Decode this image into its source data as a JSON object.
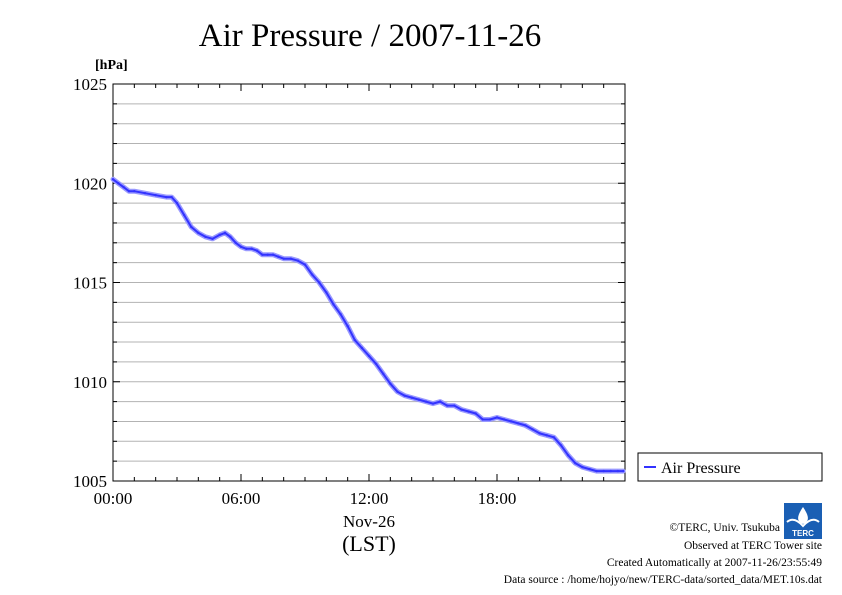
{
  "chart_data": {
    "type": "line",
    "title": "Air Pressure / 2007-11-26",
    "ylabel": "[hPa]",
    "xlabel": "(LST)",
    "x_date_label": "Nov-26",
    "ylim": [
      1005,
      1025
    ],
    "xlim": [
      "00:00",
      "24:00"
    ],
    "y_ticks": [
      "1005",
      "1010",
      "1015",
      "1020",
      "1025"
    ],
    "x_ticks": [
      "00:00",
      "06:00",
      "12:00",
      "18:00"
    ],
    "grid": "horizontal",
    "legend_position": "right",
    "series": [
      {
        "name": "Air Pressure",
        "color": "#3333ff",
        "x": [
          "00:00",
          "00:15",
          "00:30",
          "00:45",
          "01:00",
          "01:30",
          "02:00",
          "02:30",
          "02:45",
          "03:00",
          "03:20",
          "03:40",
          "04:00",
          "04:20",
          "04:40",
          "05:00",
          "05:15",
          "05:30",
          "05:45",
          "06:00",
          "06:15",
          "06:30",
          "06:45",
          "07:00",
          "07:15",
          "07:30",
          "07:45",
          "08:00",
          "08:20",
          "08:40",
          "09:00",
          "09:20",
          "09:40",
          "10:00",
          "10:20",
          "10:40",
          "11:00",
          "11:20",
          "11:40",
          "12:00",
          "12:20",
          "12:40",
          "13:00",
          "13:20",
          "13:40",
          "14:00",
          "14:20",
          "14:40",
          "15:00",
          "15:20",
          "15:40",
          "16:00",
          "16:20",
          "16:40",
          "17:00",
          "17:20",
          "17:40",
          "18:00",
          "18:20",
          "18:40",
          "19:00",
          "19:20",
          "19:40",
          "20:00",
          "20:20",
          "20:40",
          "21:00",
          "21:20",
          "21:40",
          "22:00",
          "22:20",
          "22:40",
          "23:00",
          "23:20",
          "23:40",
          "23:55"
        ],
        "y": [
          1020.2,
          1020.0,
          1019.8,
          1019.6,
          1019.6,
          1019.5,
          1019.4,
          1019.3,
          1019.3,
          1019.0,
          1018.4,
          1017.8,
          1017.5,
          1017.3,
          1017.2,
          1017.4,
          1017.5,
          1017.3,
          1017.0,
          1016.8,
          1016.7,
          1016.7,
          1016.6,
          1016.4,
          1016.4,
          1016.4,
          1016.3,
          1016.2,
          1016.2,
          1016.1,
          1015.9,
          1015.4,
          1015.0,
          1014.5,
          1013.9,
          1013.4,
          1012.8,
          1012.1,
          1011.7,
          1011.3,
          1010.9,
          1010.4,
          1009.9,
          1009.5,
          1009.3,
          1009.2,
          1009.1,
          1009.0,
          1008.9,
          1009.0,
          1008.8,
          1008.8,
          1008.6,
          1008.5,
          1008.4,
          1008.1,
          1008.1,
          1008.2,
          1008.1,
          1008.0,
          1007.9,
          1007.8,
          1007.6,
          1007.4,
          1007.3,
          1007.2,
          1006.8,
          1006.3,
          1005.9,
          1005.7,
          1005.6,
          1005.5,
          1005.5,
          1005.5,
          1005.5,
          1005.5
        ]
      }
    ]
  },
  "footer": {
    "copyright": "©TERC, Univ. Tsukuba",
    "observed": "Observed at TERC Tower site",
    "created": "Created Automatically at 2007-11-26/23:55:49",
    "source": "Data source : /home/hojyo/new/TERC-data/sorted_data/MET.10s.dat"
  },
  "logo": {
    "text": "TERC",
    "color": "#1a5fb4"
  }
}
